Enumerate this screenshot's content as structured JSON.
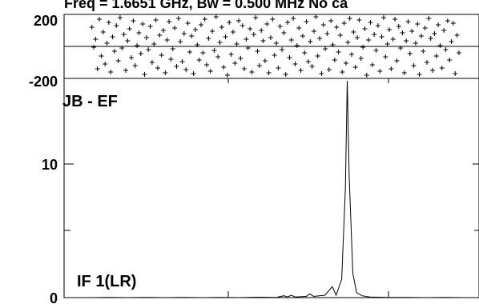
{
  "chart_data": [
    {
      "type": "scatter",
      "panel": "phase",
      "title": "Freq = 1.6651 GHz, Bw = 0.500 MHz  No ca",
      "ylim": [
        -200,
        200
      ],
      "y_ticks": [
        "200",
        "-200"
      ],
      "reference_line": 0,
      "marker": "+",
      "x_range": [
        0,
        1
      ],
      "points": [
        [
          0.01,
          120
        ],
        [
          0.015,
          -5
        ],
        [
          0.02,
          45
        ],
        [
          0.025,
          -140
        ],
        [
          0.03,
          170
        ],
        [
          0.035,
          -60
        ],
        [
          0.04,
          90
        ],
        [
          0.045,
          -110
        ],
        [
          0.05,
          20
        ],
        [
          0.055,
          150
        ],
        [
          0.06,
          -160
        ],
        [
          0.065,
          60
        ],
        [
          0.07,
          -30
        ],
        [
          0.075,
          130
        ],
        [
          0.08,
          -90
        ],
        [
          0.085,
          180
        ],
        [
          0.09,
          -10
        ],
        [
          0.095,
          75
        ],
        [
          0.1,
          -150
        ],
        [
          0.105,
          35
        ],
        [
          0.11,
          110
        ],
        [
          0.115,
          -70
        ],
        [
          0.12,
          160
        ],
        [
          0.125,
          -120
        ],
        [
          0.13,
          5
        ],
        [
          0.135,
          85
        ],
        [
          0.14,
          -45
        ],
        [
          0.145,
          140
        ],
        [
          0.15,
          -175
        ],
        [
          0.155,
          55
        ],
        [
          0.16,
          -20
        ],
        [
          0.165,
          125
        ],
        [
          0.17,
          -100
        ],
        [
          0.175,
          15
        ],
        [
          0.18,
          165
        ],
        [
          0.185,
          -135
        ],
        [
          0.19,
          70
        ],
        [
          0.195,
          -55
        ],
        [
          0.2,
          100
        ],
        [
          0.205,
          -165
        ],
        [
          0.21,
          40
        ],
        [
          0.215,
          155
        ],
        [
          0.22,
          -80
        ],
        [
          0.225,
          -15
        ],
        [
          0.23,
          115
        ],
        [
          0.235,
          -125
        ],
        [
          0.24,
          175
        ],
        [
          0.245,
          30
        ],
        [
          0.25,
          -95
        ],
        [
          0.255,
          80
        ],
        [
          0.26,
          -145
        ],
        [
          0.265,
          145
        ],
        [
          0.27,
          -35
        ],
        [
          0.275,
          65
        ],
        [
          0.28,
          -170
        ],
        [
          0.285,
          105
        ],
        [
          0.29,
          10
        ],
        [
          0.295,
          -85
        ],
        [
          0.3,
          135
        ],
        [
          0.305,
          -40
        ],
        [
          0.31,
          170
        ],
        [
          0.315,
          -115
        ],
        [
          0.32,
          50
        ],
        [
          0.325,
          -155
        ],
        [
          0.33,
          95
        ],
        [
          0.335,
          -25
        ],
        [
          0.34,
          185
        ],
        [
          0.345,
          -65
        ],
        [
          0.35,
          25
        ],
        [
          0.355,
          120
        ],
        [
          0.36,
          -130
        ],
        [
          0.365,
          60
        ],
        [
          0.37,
          -180
        ],
        [
          0.375,
          150
        ],
        [
          0.38,
          -50
        ],
        [
          0.385,
          90
        ],
        [
          0.39,
          -105
        ],
        [
          0.395,
          15
        ],
        [
          0.4,
          160
        ],
        [
          0.405,
          -75
        ],
        [
          0.41,
          130
        ],
        [
          0.415,
          -140
        ],
        [
          0.42,
          45
        ],
        [
          0.425,
          -10
        ],
        [
          0.43,
          110
        ],
        [
          0.435,
          -160
        ],
        [
          0.44,
          75
        ],
        [
          0.445,
          180
        ],
        [
          0.45,
          -30
        ],
        [
          0.455,
          -120
        ],
        [
          0.46,
          100
        ],
        [
          0.465,
          35
        ],
        [
          0.47,
          -90
        ],
        [
          0.475,
          140
        ],
        [
          0.48,
          -165
        ],
        [
          0.485,
          55
        ],
        [
          0.49,
          170
        ],
        [
          0.495,
          -55
        ],
        [
          0.5,
          20
        ],
        [
          0.505,
          -135
        ],
        [
          0.51,
          125
        ],
        [
          0.515,
          -20
        ],
        [
          0.52,
          85
        ],
        [
          0.525,
          -175
        ],
        [
          0.53,
          150
        ],
        [
          0.535,
          -70
        ],
        [
          0.54,
          40
        ],
        [
          0.545,
          175
        ],
        [
          0.55,
          -110
        ],
        [
          0.555,
          5
        ],
        [
          0.56,
          115
        ],
        [
          0.565,
          -150
        ],
        [
          0.57,
          65
        ],
        [
          0.575,
          -40
        ],
        [
          0.58,
          155
        ],
        [
          0.585,
          -95
        ],
        [
          0.59,
          30
        ],
        [
          0.595,
          -125
        ],
        [
          0.6,
          95
        ],
        [
          0.605,
          185
        ],
        [
          0.61,
          -60
        ],
        [
          0.615,
          50
        ],
        [
          0.62,
          -170
        ],
        [
          0.625,
          135
        ],
        [
          0.63,
          -15
        ],
        [
          0.635,
          80
        ],
        [
          0.64,
          -145
        ],
        [
          0.645,
          160
        ],
        [
          0.65,
          10
        ],
        [
          0.655,
          -85
        ],
        [
          0.66,
          120
        ],
        [
          0.665,
          -35
        ],
        [
          0.67,
          70
        ],
        [
          0.675,
          -160
        ],
        [
          0.68,
          145
        ],
        [
          0.685,
          -105
        ],
        [
          0.69,
          25
        ],
        [
          0.695,
          175
        ],
        [
          0.7,
          -50
        ],
        [
          0.705,
          90
        ],
        [
          0.71,
          -130
        ],
        [
          0.715,
          55
        ],
        [
          0.72,
          165
        ],
        [
          0.725,
          -75
        ],
        [
          0.73,
          -5
        ],
        [
          0.735,
          110
        ],
        [
          0.74,
          -180
        ],
        [
          0.745,
          40
        ],
        [
          0.75,
          150
        ],
        [
          0.755,
          -115
        ],
        [
          0.76,
          75
        ],
        [
          0.765,
          -25
        ],
        [
          0.77,
          130
        ],
        [
          0.775,
          -155
        ],
        [
          0.78,
          60
        ],
        [
          0.785,
          180
        ],
        [
          0.79,
          -65
        ],
        [
          0.795,
          15
        ],
        [
          0.8,
          105
        ],
        [
          0.805,
          -140
        ],
        [
          0.81,
          45
        ],
        [
          0.815,
          170
        ],
        [
          0.82,
          -90
        ],
        [
          0.825,
          125
        ],
        [
          0.83,
          -10
        ],
        [
          0.835,
          85
        ],
        [
          0.84,
          -165
        ],
        [
          0.845,
          35
        ],
        [
          0.85,
          155
        ],
        [
          0.855,
          -45
        ],
        [
          0.86,
          95
        ],
        [
          0.865,
          -120
        ],
        [
          0.87,
          20
        ],
        [
          0.875,
          140
        ],
        [
          0.88,
          -175
        ],
        [
          0.885,
          65
        ],
        [
          0.89,
          -30
        ],
        [
          0.895,
          115
        ],
        [
          0.9,
          -100
        ],
        [
          0.905,
          175
        ],
        [
          0.91,
          50
        ],
        [
          0.915,
          -150
        ],
        [
          0.92,
          80
        ],
        [
          0.925,
          -60
        ],
        [
          0.93,
          135
        ],
        [
          0.935,
          5
        ],
        [
          0.94,
          -135
        ],
        [
          0.945,
          100
        ],
        [
          0.95,
          -20
        ],
        [
          0.955,
          160
        ],
        [
          0.96,
          -85
        ],
        [
          0.965,
          30
        ],
        [
          0.97,
          145
        ],
        [
          0.975,
          -170
        ],
        [
          0.98,
          70
        ],
        [
          0.985,
          -40
        ]
      ]
    },
    {
      "type": "line",
      "panel": "amplitude",
      "baseline_label": "JB - EF",
      "series_label": "IF 1(LR)",
      "ylim": [
        0,
        18
      ],
      "y_ticks": [
        "10",
        "0"
      ],
      "x_range": [
        0,
        1
      ],
      "points": [
        [
          0.0,
          0
        ],
        [
          0.05,
          0.01
        ],
        [
          0.1,
          0
        ],
        [
          0.15,
          0.02
        ],
        [
          0.2,
          0
        ],
        [
          0.25,
          0.01
        ],
        [
          0.3,
          0
        ],
        [
          0.35,
          0.02
        ],
        [
          0.4,
          0
        ],
        [
          0.45,
          0.03
        ],
        [
          0.5,
          0.02
        ],
        [
          0.52,
          0.15
        ],
        [
          0.53,
          0.05
        ],
        [
          0.54,
          0.2
        ],
        [
          0.55,
          0.05
        ],
        [
          0.58,
          0.1
        ],
        [
          0.59,
          0.3
        ],
        [
          0.6,
          0.1
        ],
        [
          0.63,
          0.2
        ],
        [
          0.65,
          0.9
        ],
        [
          0.66,
          0.2
        ],
        [
          0.675,
          1.5
        ],
        [
          0.685,
          9
        ],
        [
          0.69,
          17.8
        ],
        [
          0.695,
          10
        ],
        [
          0.705,
          2
        ],
        [
          0.715,
          0.4
        ],
        [
          0.73,
          0.15
        ],
        [
          0.75,
          0.05
        ],
        [
          0.8,
          0.02
        ],
        [
          0.85,
          0.01
        ],
        [
          0.9,
          0
        ],
        [
          0.95,
          0.01
        ],
        [
          1.0,
          0
        ]
      ]
    }
  ]
}
